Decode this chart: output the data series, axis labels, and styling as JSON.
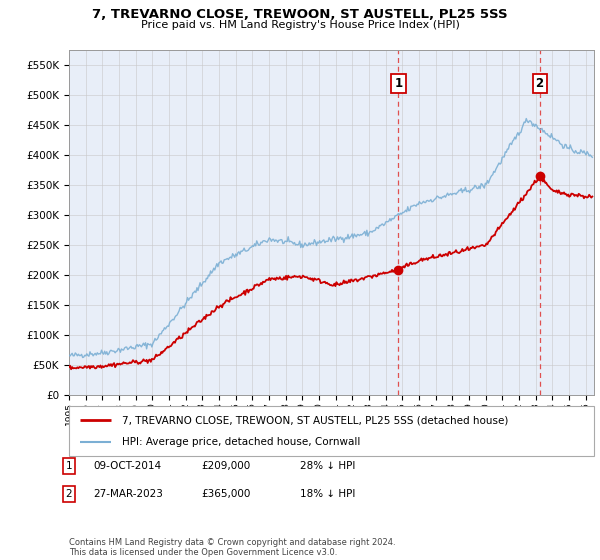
{
  "title": "7, TREVARNO CLOSE, TREWOON, ST AUSTELL, PL25 5SS",
  "subtitle": "Price paid vs. HM Land Registry's House Price Index (HPI)",
  "ylabel_ticks": [
    "£0",
    "£50K",
    "£100K",
    "£150K",
    "£200K",
    "£250K",
    "£300K",
    "£350K",
    "£400K",
    "£450K",
    "£500K",
    "£550K"
  ],
  "ytick_values": [
    0,
    50000,
    100000,
    150000,
    200000,
    250000,
    300000,
    350000,
    400000,
    450000,
    500000,
    550000
  ],
  "ylim": [
    0,
    575000
  ],
  "xlim_start": 1995.0,
  "xlim_end": 2026.5,
  "sale1_x": 2014.77,
  "sale1_y": 209000,
  "sale2_x": 2023.24,
  "sale2_y": 365000,
  "sale1_date": "09-OCT-2014",
  "sale1_price": "£209,000",
  "sale1_hpi": "28% ↓ HPI",
  "sale2_date": "27-MAR-2023",
  "sale2_price": "£365,000",
  "sale2_hpi": "18% ↓ HPI",
  "legend1": "7, TREVARNO CLOSE, TREWOON, ST AUSTELL, PL25 5SS (detached house)",
  "legend2": "HPI: Average price, detached house, Cornwall",
  "footer": "Contains HM Land Registry data © Crown copyright and database right 2024.\nThis data is licensed under the Open Government Licence v3.0.",
  "red_color": "#cc0000",
  "blue_color": "#7bafd4",
  "vline_color": "#e05050",
  "background_color": "#e8eef8",
  "plot_bg": "#ffffff"
}
